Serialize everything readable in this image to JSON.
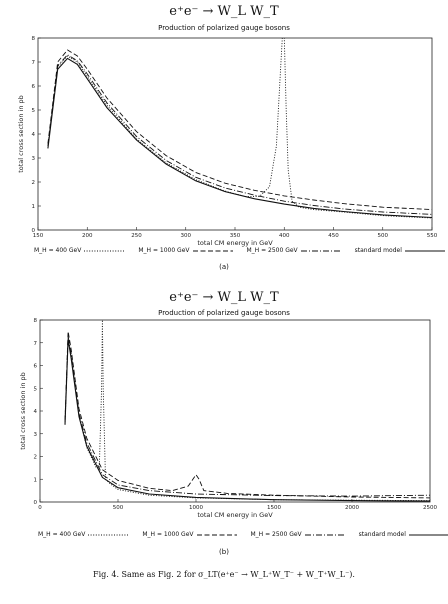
{
  "chart_data": [
    {
      "type": "line",
      "title": "e⁺e⁻  →  W_L W_T",
      "subtitle": "Production of polarized gauge bosons",
      "xlabel": "total CM energy in GeV",
      "ylabel": "total cross section in pb",
      "xlim": [
        150,
        550
      ],
      "ylim": [
        0,
        8
      ],
      "xticks": [
        150,
        200,
        250,
        300,
        350,
        400,
        450,
        500,
        550
      ],
      "yticks": [
        0,
        1,
        2,
        3,
        4,
        5,
        6,
        7,
        8
      ],
      "panel_label": "(a)",
      "series": [
        {
          "name": "M_H = 400 GeV",
          "style": "dotted",
          "x": [
            160,
            170,
            180,
            190,
            200,
            220,
            250,
            280,
            310,
            340,
            360,
            375,
            385,
            392,
            396,
            398,
            400,
            402,
            404,
            408,
            415,
            430,
            460,
            500,
            550
          ],
          "y": [
            3.5,
            6.8,
            7.25,
            7.0,
            6.4,
            5.2,
            3.8,
            2.8,
            2.1,
            1.62,
            1.4,
            1.4,
            1.8,
            3.5,
            6.5,
            8.0,
            8.0,
            5.0,
            2.5,
            1.2,
            0.95,
            0.85,
            0.75,
            0.6,
            0.5
          ]
        },
        {
          "name": "M_H = 1000 GeV",
          "style": "dashed",
          "x": [
            160,
            170,
            180,
            190,
            200,
            220,
            250,
            280,
            310,
            340,
            370,
            400,
            430,
            460,
            500,
            550
          ],
          "y": [
            3.6,
            7.0,
            7.5,
            7.25,
            6.7,
            5.5,
            4.1,
            3.1,
            2.4,
            1.95,
            1.65,
            1.42,
            1.25,
            1.1,
            0.95,
            0.85
          ]
        },
        {
          "name": "M_H = 2500 GeV",
          "style": "dashdot",
          "x": [
            160,
            170,
            180,
            190,
            200,
            220,
            250,
            280,
            310,
            340,
            370,
            400,
            430,
            460,
            500,
            550
          ],
          "y": [
            3.5,
            6.85,
            7.3,
            7.05,
            6.5,
            5.3,
            3.9,
            2.9,
            2.2,
            1.75,
            1.45,
            1.2,
            1.02,
            0.88,
            0.75,
            0.65
          ]
        },
        {
          "name": "standard model",
          "style": "solid",
          "x": [
            160,
            170,
            180,
            190,
            200,
            220,
            250,
            280,
            310,
            340,
            370,
            400,
            430,
            460,
            500,
            550
          ],
          "y": [
            3.4,
            6.7,
            7.15,
            6.9,
            6.3,
            5.1,
            3.75,
            2.75,
            2.05,
            1.6,
            1.3,
            1.08,
            0.9,
            0.77,
            0.63,
            0.52
          ]
        }
      ]
    },
    {
      "type": "line",
      "title": "e⁺e⁻  →  W_L W_T",
      "subtitle": "Production of polarized gauge bosons",
      "xlabel": "total CM energy in GeV",
      "ylabel": "total cross section in pb",
      "xlim": [
        0,
        2500
      ],
      "ylim": [
        0,
        8
      ],
      "xticks": [
        0,
        500,
        1000,
        1500,
        2000,
        2500
      ],
      "yticks": [
        0,
        1,
        2,
        3,
        4,
        5,
        6,
        7,
        8
      ],
      "panel_label": "(b)",
      "series": [
        {
          "name": "M_H = 400 GeV",
          "style": "dotted",
          "x": [
            160,
            180,
            200,
            250,
            300,
            360,
            380,
            395,
            400,
            405,
            420,
            450,
            500,
            700,
            1000,
            1500,
            2000,
            2500
          ],
          "y": [
            3.4,
            7.2,
            6.4,
            3.8,
            2.4,
            1.5,
            1.5,
            5.0,
            8.0,
            5.0,
            1.0,
            0.8,
            0.55,
            0.3,
            0.18,
            0.1,
            0.08,
            0.06
          ]
        },
        {
          "name": "M_H = 1000 GeV",
          "style": "dashed",
          "x": [
            160,
            180,
            200,
            250,
            300,
            400,
            500,
            700,
            850,
            950,
            980,
            1000,
            1020,
            1050,
            1200,
            1500,
            2000,
            2500
          ],
          "y": [
            3.6,
            7.5,
            6.7,
            4.1,
            2.8,
            1.42,
            0.95,
            0.6,
            0.5,
            0.7,
            1.0,
            1.2,
            1.0,
            0.5,
            0.38,
            0.3,
            0.22,
            0.18
          ]
        },
        {
          "name": "M_H = 2500 GeV",
          "style": "dashdot",
          "x": [
            160,
            180,
            200,
            250,
            300,
            400,
            500,
            700,
            1000,
            1500,
            2000,
            2500
          ],
          "y": [
            3.5,
            7.3,
            6.5,
            3.9,
            2.6,
            1.2,
            0.75,
            0.5,
            0.35,
            0.28,
            0.26,
            0.3
          ]
        },
        {
          "name": "standard model",
          "style": "solid",
          "x": [
            160,
            180,
            200,
            250,
            300,
            400,
            500,
            700,
            1000,
            1500,
            2000,
            2500
          ],
          "y": [
            3.4,
            7.15,
            6.3,
            3.75,
            2.45,
            1.08,
            0.63,
            0.35,
            0.2,
            0.1,
            0.06,
            0.04
          ]
        }
      ]
    }
  ],
  "legend_a": {
    "items": [
      {
        "label": "M_H = 400 GeV"
      },
      {
        "label": "M_H = 1000 GeV"
      },
      {
        "label": "M_H = 2500 GeV"
      },
      {
        "label": "standard model"
      }
    ]
  },
  "legend_b": {
    "items": [
      {
        "label": "M_H = 400 GeV"
      },
      {
        "label": "M_H = 1000 GeV"
      },
      {
        "label": "M_H = 2500 GeV"
      },
      {
        "label": "standard model"
      }
    ]
  },
  "caption": "Fig. 4.  Same as Fig. 2 for σ_LT(e⁺e⁻ → W_L⁺W_T⁻ + W_T⁺W_L⁻)."
}
